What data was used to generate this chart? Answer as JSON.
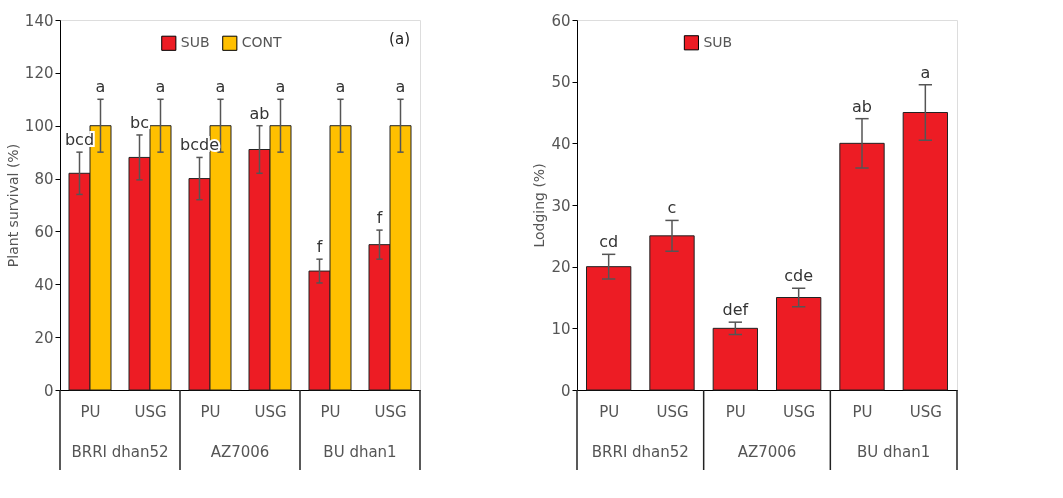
{
  "chart_data": [
    {
      "type": "bar",
      "ylabel": "Plant survival (%)",
      "categories": [
        "PU",
        "USG",
        "PU",
        "USG",
        "PU",
        "USG"
      ],
      "ylim": [
        0,
        140
      ],
      "yticks": [
        0,
        20,
        40,
        60,
        80,
        100,
        120,
        140
      ],
      "grid": false,
      "legend": "top",
      "annotations": [
        "(a)",
        "BRRI dhan52",
        "AZ7006",
        "BU dhan1"
      ],
      "series": [
        {
          "name": "SUB",
          "color": "#ed1c24",
          "values": [
            82,
            88,
            80,
            91,
            45,
            55
          ],
          "errors": [
            8,
            8.5,
            8,
            9,
            4.5,
            5.5
          ],
          "value_labels": [
            "bcd",
            "bc",
            "bcde",
            "ab",
            "f",
            "f"
          ]
        },
        {
          "name": "CONT",
          "color": "#ffc000",
          "values": [
            100,
            100,
            100,
            100,
            100,
            100
          ],
          "errors": [
            10,
            10,
            10,
            10,
            10,
            10
          ],
          "value_labels": [
            "a",
            "a",
            "a",
            "a",
            "a",
            "a"
          ]
        }
      ]
    },
    {
      "type": "bar",
      "ylabel": "Lodging (%)",
      "categories": [
        "PU",
        "USG",
        "PU",
        "USG",
        "PU",
        "USG"
      ],
      "ylim": [
        0,
        60
      ],
      "yticks": [
        0,
        10,
        20,
        30,
        40,
        50,
        60
      ],
      "grid": false,
      "legend": "top",
      "annotations": [
        "BRRI dhan52",
        "AZ7006",
        "BU dhan1"
      ],
      "series": [
        {
          "name": "SUB",
          "color": "#ed1c24",
          "values": [
            20,
            25,
            10,
            15,
            40,
            45
          ],
          "errors": [
            2,
            2.5,
            1,
            1.5,
            4,
            4.5
          ],
          "value_labels": [
            "cd",
            "c",
            "def",
            "cde",
            "ab",
            "a"
          ]
        }
      ]
    }
  ]
}
